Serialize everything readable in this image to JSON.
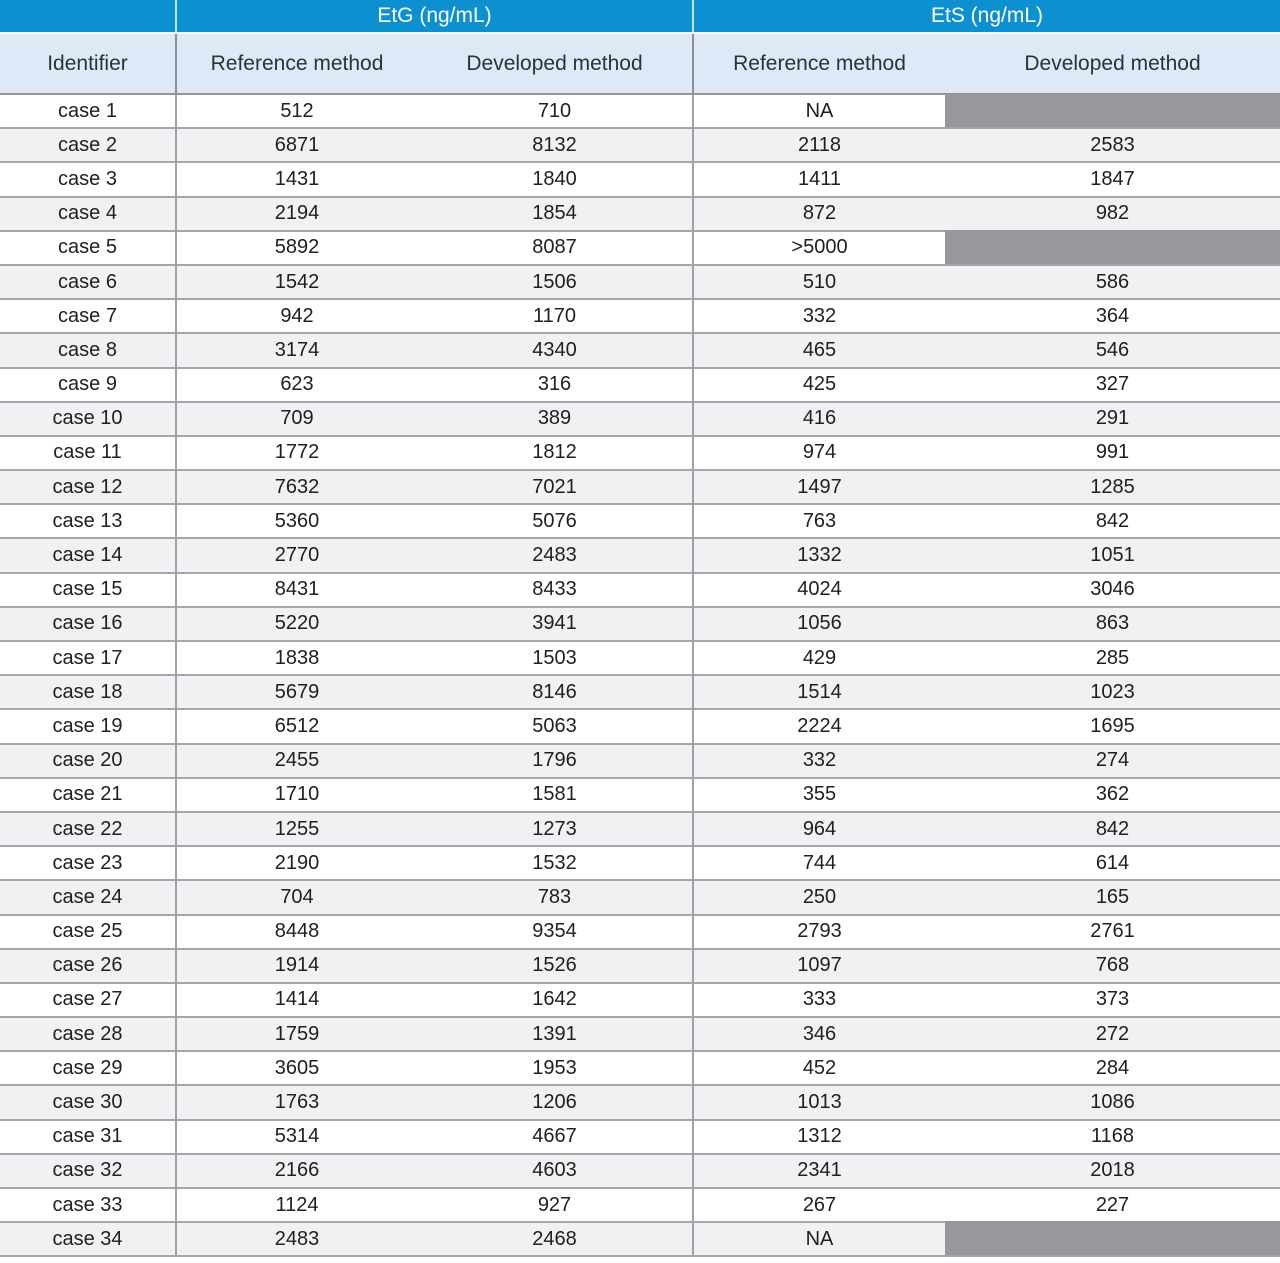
{
  "table": {
    "corner_label": "",
    "groups": [
      {
        "label": "EtG (ng/mL)"
      },
      {
        "label": "EtS (ng/mL)"
      }
    ],
    "columns": [
      "Identifier",
      "Reference method",
      "Developed method",
      "Reference method",
      "Developed method"
    ],
    "rows": [
      {
        "identifier": "case 1",
        "etg_reference": "512",
        "etg_developed": "710",
        "ets_reference": "NA",
        "ets_developed": null
      },
      {
        "identifier": "case 2",
        "etg_reference": "6871",
        "etg_developed": "8132",
        "ets_reference": "2118",
        "ets_developed": "2583"
      },
      {
        "identifier": "case 3",
        "etg_reference": "1431",
        "etg_developed": "1840",
        "ets_reference": "1411",
        "ets_developed": "1847"
      },
      {
        "identifier": "case 4",
        "etg_reference": "2194",
        "etg_developed": "1854",
        "ets_reference": "872",
        "ets_developed": "982"
      },
      {
        "identifier": "case 5",
        "etg_reference": "5892",
        "etg_developed": "8087",
        "ets_reference": ">5000",
        "ets_developed": null
      },
      {
        "identifier": "case 6",
        "etg_reference": "1542",
        "etg_developed": "1506",
        "ets_reference": "510",
        "ets_developed": "586"
      },
      {
        "identifier": "case 7",
        "etg_reference": "942",
        "etg_developed": "1170",
        "ets_reference": "332",
        "ets_developed": "364"
      },
      {
        "identifier": "case 8",
        "etg_reference": "3174",
        "etg_developed": "4340",
        "ets_reference": "465",
        "ets_developed": "546"
      },
      {
        "identifier": "case 9",
        "etg_reference": "623",
        "etg_developed": "316",
        "ets_reference": "425",
        "ets_developed": "327"
      },
      {
        "identifier": "case 10",
        "etg_reference": "709",
        "etg_developed": "389",
        "ets_reference": "416",
        "ets_developed": "291"
      },
      {
        "identifier": "case 11",
        "etg_reference": "1772",
        "etg_developed": "1812",
        "ets_reference": "974",
        "ets_developed": "991"
      },
      {
        "identifier": "case 12",
        "etg_reference": "7632",
        "etg_developed": "7021",
        "ets_reference": "1497",
        "ets_developed": "1285"
      },
      {
        "identifier": "case 13",
        "etg_reference": "5360",
        "etg_developed": "5076",
        "ets_reference": "763",
        "ets_developed": "842"
      },
      {
        "identifier": "case 14",
        "etg_reference": "2770",
        "etg_developed": "2483",
        "ets_reference": "1332",
        "ets_developed": "1051"
      },
      {
        "identifier": "case 15",
        "etg_reference": "8431",
        "etg_developed": "8433",
        "ets_reference": "4024",
        "ets_developed": "3046"
      },
      {
        "identifier": "case 16",
        "etg_reference": "5220",
        "etg_developed": "3941",
        "ets_reference": "1056",
        "ets_developed": "863"
      },
      {
        "identifier": "case 17",
        "etg_reference": "1838",
        "etg_developed": "1503",
        "ets_reference": "429",
        "ets_developed": "285"
      },
      {
        "identifier": "case 18",
        "etg_reference": "5679",
        "etg_developed": "8146",
        "ets_reference": "1514",
        "ets_developed": "1023"
      },
      {
        "identifier": "case 19",
        "etg_reference": "6512",
        "etg_developed": "5063",
        "ets_reference": "2224",
        "ets_developed": "1695"
      },
      {
        "identifier": "case 20",
        "etg_reference": "2455",
        "etg_developed": "1796",
        "ets_reference": "332",
        "ets_developed": "274"
      },
      {
        "identifier": "case 21",
        "etg_reference": "1710",
        "etg_developed": "1581",
        "ets_reference": "355",
        "ets_developed": "362"
      },
      {
        "identifier": "case 22",
        "etg_reference": "1255",
        "etg_developed": "1273",
        "ets_reference": "964",
        "ets_developed": "842"
      },
      {
        "identifier": "case 23",
        "etg_reference": "2190",
        "etg_developed": "1532",
        "ets_reference": "744",
        "ets_developed": "614"
      },
      {
        "identifier": "case 24",
        "etg_reference": "704",
        "etg_developed": "783",
        "ets_reference": "250",
        "ets_developed": "165"
      },
      {
        "identifier": "case 25",
        "etg_reference": "8448",
        "etg_developed": "9354",
        "ets_reference": "2793",
        "ets_developed": "2761"
      },
      {
        "identifier": "case 26",
        "etg_reference": "1914",
        "etg_developed": "1526",
        "ets_reference": "1097",
        "ets_developed": "768"
      },
      {
        "identifier": "case 27",
        "etg_reference": "1414",
        "etg_developed": "1642",
        "ets_reference": "333",
        "ets_developed": "373"
      },
      {
        "identifier": "case 28",
        "etg_reference": "1759",
        "etg_developed": "1391",
        "ets_reference": "346",
        "ets_developed": "272"
      },
      {
        "identifier": "case 29",
        "etg_reference": "3605",
        "etg_developed": "1953",
        "ets_reference": "452",
        "ets_developed": "284"
      },
      {
        "identifier": "case 30",
        "etg_reference": "1763",
        "etg_developed": "1206",
        "ets_reference": "1013",
        "ets_developed": "1086"
      },
      {
        "identifier": "case 31",
        "etg_reference": "5314",
        "etg_developed": "4667",
        "ets_reference": "1312",
        "ets_developed": "1168"
      },
      {
        "identifier": "case 32",
        "etg_reference": "2166",
        "etg_developed": "4603",
        "ets_reference": "2341",
        "ets_developed": "2018"
      },
      {
        "identifier": "case 33",
        "etg_reference": "1124",
        "etg_developed": "927",
        "ets_reference": "267",
        "ets_developed": "227"
      },
      {
        "identifier": "case 34",
        "etg_reference": "2483",
        "etg_developed": "2468",
        "ets_reference": "NA",
        "ets_developed": null
      }
    ]
  },
  "colors": {
    "header_blue": "#0d90cf",
    "subheader_light_blue": "#dde9f6",
    "row_stripe_gray": "#f1f1f3",
    "blocked_cell_gray": "#97979c",
    "grid_line_gray": "#a5a5ab",
    "body_text": "#202022",
    "header_text_white": "#ffffff"
  }
}
